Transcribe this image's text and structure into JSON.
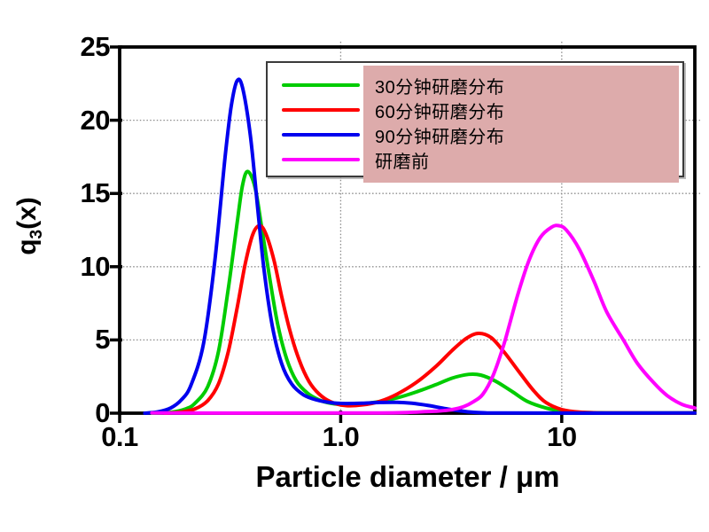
{
  "page": {
    "background": "#ffffff"
  },
  "chart_data": {
    "type": "line",
    "title": "",
    "xlabel": "Particle diameter / μm",
    "ylabel": "q3(x)",
    "ylabel_parts": {
      "pre": "q",
      "sub": "3",
      "post": "(x)"
    },
    "x_scale": "log",
    "xlim": [
      0.1,
      40
    ],
    "ylim": [
      0,
      25
    ],
    "grid": {
      "show": true,
      "horizontal_at": [
        5,
        10,
        15,
        20
      ],
      "vertical_at": [
        1.0,
        10
      ]
    },
    "xticks": [
      {
        "value": 0.1,
        "label": "0.1"
      },
      {
        "value": 1.0,
        "label": "1.0"
      },
      {
        "value": 10,
        "label": "10"
      }
    ],
    "yticks": [
      {
        "value": 0,
        "label": "0"
      },
      {
        "value": 5,
        "label": "5"
      },
      {
        "value": 10,
        "label": "10"
      },
      {
        "value": 15,
        "label": "15"
      },
      {
        "value": 20,
        "label": "20"
      },
      {
        "value": 25,
        "label": "25"
      }
    ],
    "legend": {
      "position": "top-right",
      "highlight_color": "#ddabab",
      "items": [
        {
          "label": "30分钟研磨分布",
          "color": "#00cc00"
        },
        {
          "label": "60分钟研磨分布",
          "color": "#ff0000"
        },
        {
          "label": "90分钟研磨分布",
          "color": "#0000ee"
        },
        {
          "label": "研磨前",
          "color": "#ff00ff"
        }
      ]
    },
    "series": [
      {
        "name": "30分钟研磨分布",
        "color": "#00cc00",
        "points": [
          [
            0.14,
            0.0
          ],
          [
            0.17,
            0.06
          ],
          [
            0.2,
            0.3
          ],
          [
            0.22,
            0.7
          ],
          [
            0.25,
            1.8
          ],
          [
            0.28,
            4.2
          ],
          [
            0.31,
            8.5
          ],
          [
            0.34,
            13.0
          ],
          [
            0.36,
            15.6
          ],
          [
            0.38,
            16.5
          ],
          [
            0.41,
            15.4
          ],
          [
            0.44,
            12.6
          ],
          [
            0.48,
            9.0
          ],
          [
            0.52,
            6.0
          ],
          [
            0.57,
            3.7
          ],
          [
            0.63,
            2.2
          ],
          [
            0.71,
            1.35
          ],
          [
            0.8,
            0.9
          ],
          [
            0.9,
            0.68
          ],
          [
            1.05,
            0.58
          ],
          [
            1.25,
            0.65
          ],
          [
            1.5,
            0.8
          ],
          [
            1.8,
            1.05
          ],
          [
            2.2,
            1.45
          ],
          [
            2.7,
            1.95
          ],
          [
            3.2,
            2.4
          ],
          [
            3.8,
            2.65
          ],
          [
            4.3,
            2.6
          ],
          [
            5.0,
            2.2
          ],
          [
            6.0,
            1.45
          ],
          [
            7.0,
            0.8
          ],
          [
            8.5,
            0.35
          ],
          [
            10,
            0.15
          ],
          [
            12,
            0.06
          ],
          [
            15,
            0.03
          ],
          [
            20,
            0.02
          ],
          [
            40,
            0.01
          ]
        ]
      },
      {
        "name": "60分钟研磨分布",
        "color": "#ff0000",
        "points": [
          [
            0.16,
            0.0
          ],
          [
            0.19,
            0.08
          ],
          [
            0.22,
            0.3
          ],
          [
            0.25,
            0.85
          ],
          [
            0.28,
            2.0
          ],
          [
            0.31,
            4.2
          ],
          [
            0.34,
            7.2
          ],
          [
            0.37,
            10.2
          ],
          [
            0.4,
            12.2
          ],
          [
            0.43,
            12.8
          ],
          [
            0.46,
            12.2
          ],
          [
            0.5,
            10.4
          ],
          [
            0.54,
            8.0
          ],
          [
            0.59,
            5.6
          ],
          [
            0.65,
            3.6
          ],
          [
            0.72,
            2.15
          ],
          [
            0.8,
            1.3
          ],
          [
            0.9,
            0.78
          ],
          [
            1.05,
            0.52
          ],
          [
            1.25,
            0.56
          ],
          [
            1.5,
            0.8
          ],
          [
            1.8,
            1.3
          ],
          [
            2.2,
            2.1
          ],
          [
            2.7,
            3.2
          ],
          [
            3.2,
            4.3
          ],
          [
            3.7,
            5.1
          ],
          [
            4.2,
            5.45
          ],
          [
            4.8,
            5.15
          ],
          [
            5.5,
            4.15
          ],
          [
            6.5,
            2.7
          ],
          [
            7.5,
            1.5
          ],
          [
            8.5,
            0.72
          ],
          [
            10,
            0.25
          ],
          [
            12,
            0.07
          ],
          [
            15,
            0.02
          ],
          [
            20,
            0.01
          ],
          [
            40,
            0.01
          ]
        ]
      },
      {
        "name": "90分钟研磨分布",
        "color": "#0000ee",
        "points": [
          [
            0.13,
            0.0
          ],
          [
            0.15,
            0.1
          ],
          [
            0.17,
            0.35
          ],
          [
            0.19,
            0.9
          ],
          [
            0.21,
            1.9
          ],
          [
            0.24,
            4.8
          ],
          [
            0.27,
            10.5
          ],
          [
            0.3,
            17.5
          ],
          [
            0.32,
            21.0
          ],
          [
            0.34,
            22.7
          ],
          [
            0.36,
            22.2
          ],
          [
            0.39,
            19.0
          ],
          [
            0.42,
            14.2
          ],
          [
            0.45,
            9.8
          ],
          [
            0.49,
            6.0
          ],
          [
            0.54,
            3.4
          ],
          [
            0.6,
            2.0
          ],
          [
            0.68,
            1.25
          ],
          [
            0.78,
            0.9
          ],
          [
            0.9,
            0.72
          ],
          [
            1.05,
            0.66
          ],
          [
            1.25,
            0.68
          ],
          [
            1.5,
            0.73
          ],
          [
            1.8,
            0.74
          ],
          [
            2.1,
            0.68
          ],
          [
            2.5,
            0.52
          ],
          [
            3.0,
            0.3
          ],
          [
            3.5,
            0.15
          ],
          [
            4.0,
            0.06
          ],
          [
            4.6,
            0.02
          ],
          [
            5.2,
            0.01
          ],
          [
            40,
            0.01
          ]
        ]
      },
      {
        "name": "研磨前",
        "color": "#ff00ff",
        "points": [
          [
            0.14,
            0.01
          ],
          [
            1.0,
            0.01
          ],
          [
            1.5,
            0.02
          ],
          [
            2.0,
            0.05
          ],
          [
            2.4,
            0.1
          ],
          [
            2.8,
            0.15
          ],
          [
            3.2,
            0.25
          ],
          [
            3.6,
            0.45
          ],
          [
            4.0,
            0.8
          ],
          [
            4.4,
            1.3
          ],
          [
            4.9,
            2.6
          ],
          [
            5.5,
            4.8
          ],
          [
            6.3,
            8.0
          ],
          [
            7.1,
            10.4
          ],
          [
            8.0,
            12.0
          ],
          [
            9.0,
            12.7
          ],
          [
            9.7,
            12.8
          ],
          [
            10.5,
            12.5
          ],
          [
            12,
            11.2
          ],
          [
            14,
            9.0
          ],
          [
            16,
            6.9
          ],
          [
            19,
            5.0
          ],
          [
            22,
            3.4
          ],
          [
            26,
            2.1
          ],
          [
            30,
            1.2
          ],
          [
            35,
            0.6
          ],
          [
            40,
            0.35
          ]
        ]
      }
    ],
    "style": {
      "frame_color": "#000000",
      "grid_color": "#8c8c8c",
      "line_width": 4
    }
  }
}
